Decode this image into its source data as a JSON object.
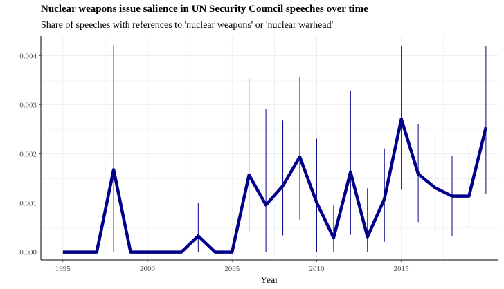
{
  "chart_data": {
    "type": "line",
    "title": "Nuclear weapons issue salience in UN Security Council speeches over time",
    "subtitle": "Share of speeches with references to 'nuclear weapons' or 'nuclear warhead'",
    "xlabel": "Year",
    "ylabel": "",
    "xlim": [
      1993.7,
      2020.7
    ],
    "ylim": [
      -0.00016,
      0.0044
    ],
    "xticks": [
      1995,
      2000,
      2005,
      2010,
      2015
    ],
    "yticks": [
      0.0,
      0.001,
      0.002,
      0.003,
      0.004
    ],
    "ytick_labels": [
      "0.000",
      "0.001",
      "0.002",
      "0.003",
      "0.004"
    ],
    "grid": true,
    "series": [
      {
        "x": [
          1995,
          1996,
          1997,
          1998,
          1999,
          2000,
          2001,
          2002,
          2003,
          2004,
          2005,
          2006,
          2007,
          2008,
          2009,
          2010,
          2011,
          2012,
          2013,
          2014,
          2015,
          2016,
          2017,
          2018,
          2019,
          2020
        ],
        "y": [
          0,
          0,
          0,
          0.00168,
          0,
          0,
          0,
          0,
          0.00033,
          0,
          0,
          0.00157,
          0.00096,
          0.00135,
          0.00194,
          0.00101,
          0.00029,
          0.00163,
          0.00031,
          0.00108,
          0.00271,
          0.00159,
          0.00131,
          0.00114,
          0.00114,
          0.00254
        ],
        "ci_low": [
          null,
          null,
          null,
          0,
          null,
          null,
          null,
          null,
          0,
          null,
          null,
          0.0004,
          0,
          0.00034,
          0.00066,
          0,
          0,
          0.00035,
          0,
          0.00021,
          0.00127,
          0.00061,
          0.00039,
          0.00032,
          0.00051,
          0.00118
        ],
        "ci_high": [
          null,
          null,
          null,
          0.00421,
          null,
          null,
          null,
          null,
          0.001,
          null,
          null,
          0.00354,
          0.00291,
          0.00268,
          0.00357,
          0.00231,
          0.00095,
          0.00329,
          0.0013,
          0.00211,
          0.00419,
          0.0026,
          0.0024,
          0.00196,
          0.00212,
          0.00419
        ]
      }
    ],
    "colors": {
      "line": "#00008b",
      "grid": "#ebebeb",
      "axis": "#000000"
    }
  }
}
